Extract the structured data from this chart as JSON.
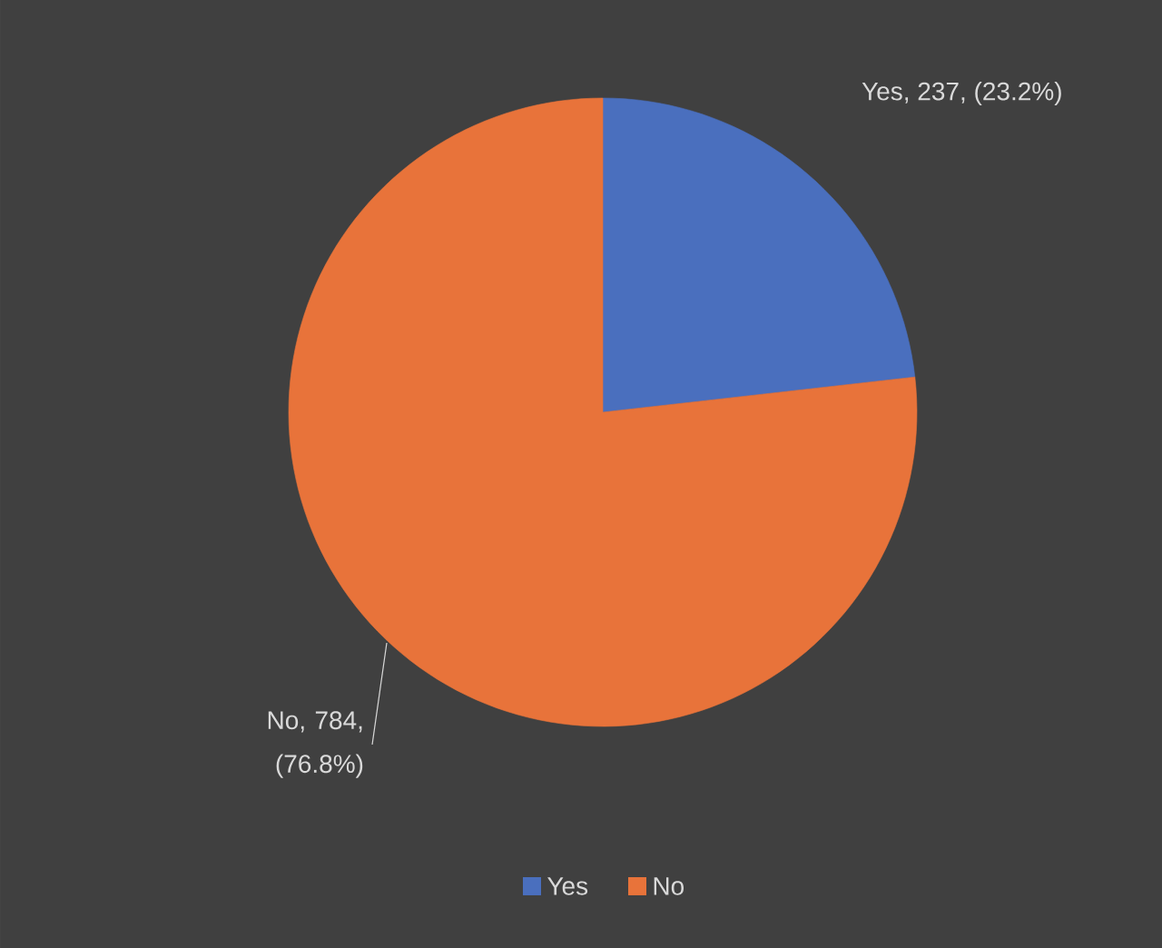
{
  "chart_data": {
    "type": "pie",
    "categories": [
      "Yes",
      "No"
    ],
    "values": [
      237,
      784
    ],
    "colors": [
      "#4a6fbe",
      "#e8733a"
    ],
    "value_labels": [
      "Yes, 237, (23.2%)",
      "No, 784, (76.8%)"
    ],
    "legend": "bottom"
  }
}
